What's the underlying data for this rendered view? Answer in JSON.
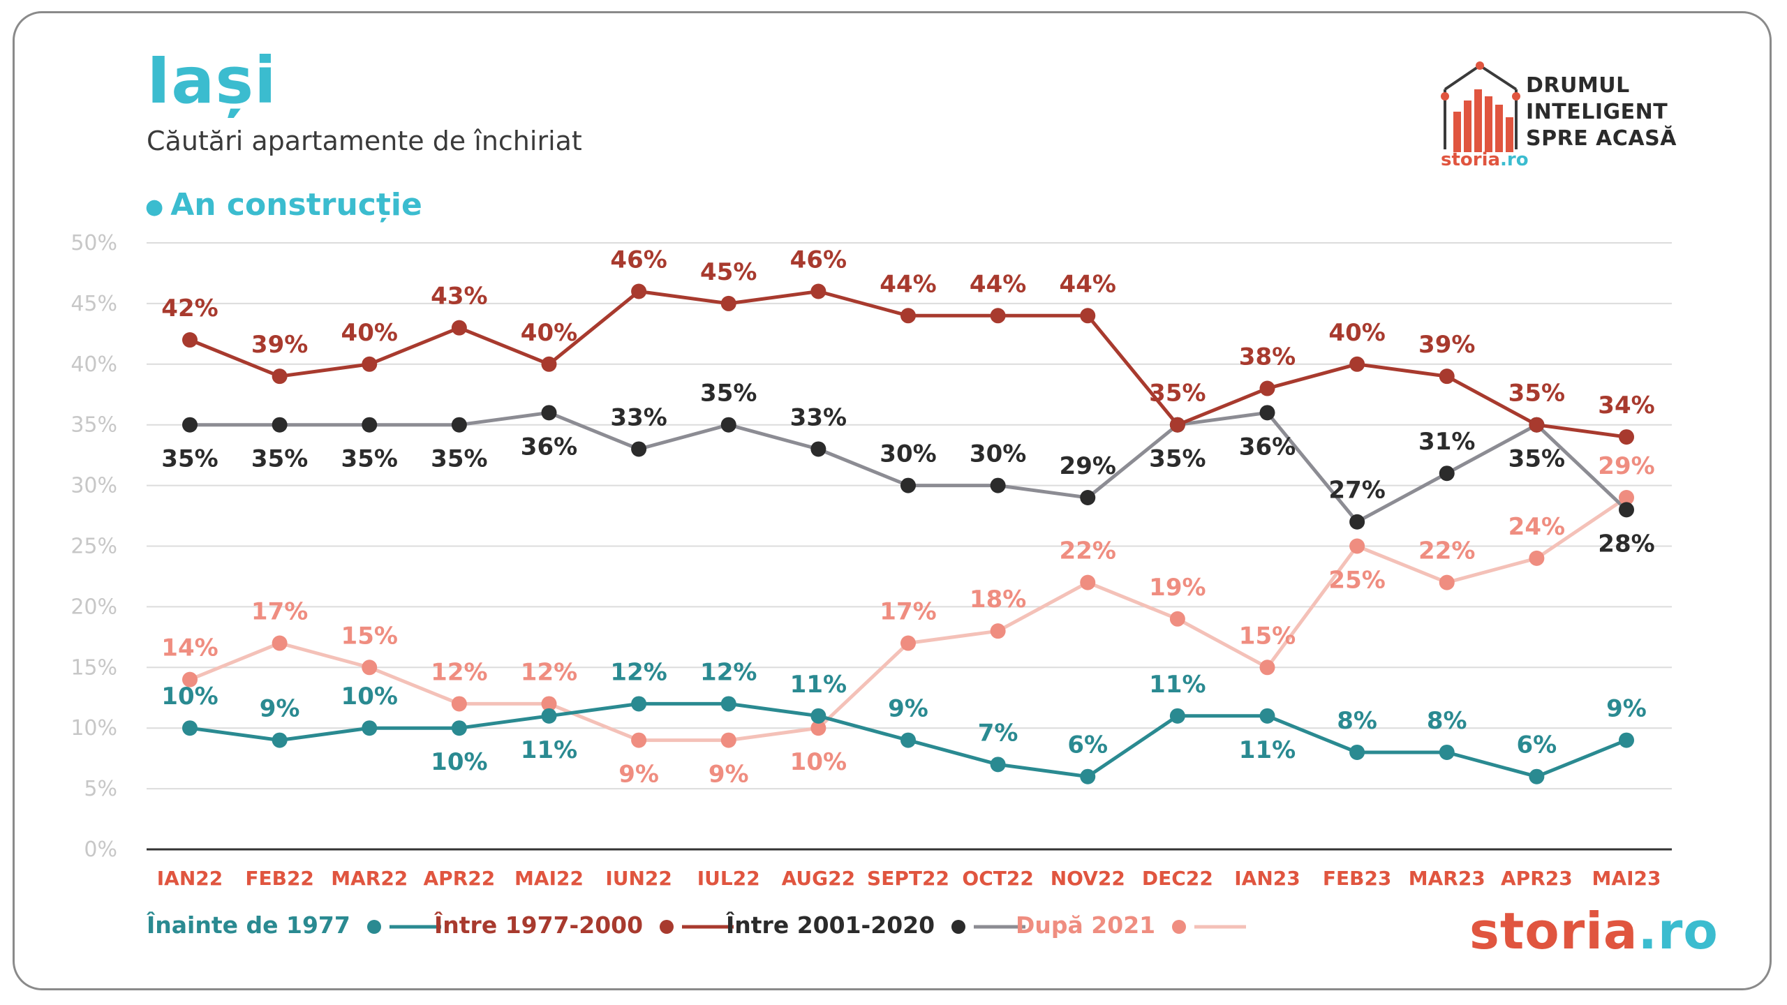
{
  "header": {
    "title": "Iași",
    "subtitle": "Căutări apartamente de închiriat",
    "section": "An construcție"
  },
  "brand": {
    "lines": [
      "DRUMUL",
      "INTELIGENT",
      "SPRE ACASĂ"
    ],
    "small_name": "storia",
    "small_tld": ".ro",
    "footer_name": "storia",
    "footer_tld": ".ro"
  },
  "colors": {
    "teal": "#2a8a91",
    "red": "#a83a2e",
    "dark": "#2b2b2b",
    "gray": "#8c8c93",
    "salmon": "#ef8d80",
    "salmon_line": "#f4c1b8",
    "accent": "#3bbccf",
    "axis_label": "#e0553f",
    "tick": "#c7c7c7"
  },
  "chart_data": {
    "type": "line",
    "categories": [
      "IAN22",
      "FEB22",
      "MAR22",
      "APR22",
      "MAI22",
      "IUN22",
      "IUL22",
      "AUG22",
      "SEPT22",
      "OCT22",
      "NOV22",
      "DEC22",
      "IAN23",
      "FEB23",
      "MAR23",
      "APR23",
      "MAI23"
    ],
    "ylim": [
      0,
      50
    ],
    "yticks": [
      "0%",
      "5%",
      "10%",
      "15%",
      "20%",
      "25%",
      "30%",
      "35%",
      "40%",
      "45%",
      "50%"
    ],
    "grid": true,
    "legend_position": "bottom",
    "series": [
      {
        "name": "Înainte de 1977",
        "values": [
          10,
          9,
          10,
          10,
          11,
          12,
          12,
          11,
          9,
          7,
          6,
          11,
          11,
          8,
          8,
          6,
          9
        ],
        "labels": [
          "10%",
          "9%",
          "10%",
          "10%",
          "11%",
          "12%",
          "12%",
          "11%",
          "9%",
          "7%",
          "6%",
          "11%",
          "11%",
          "8%",
          "8%",
          "6%",
          "9%"
        ],
        "label_pos": [
          "above",
          "above",
          "above",
          "below",
          "below",
          "above",
          "above",
          "above",
          "above",
          "above",
          "above",
          "above",
          "below",
          "above",
          "above",
          "above",
          "above"
        ]
      },
      {
        "name": "Între 1977-2000",
        "values": [
          42,
          39,
          40,
          43,
          40,
          46,
          45,
          46,
          44,
          44,
          44,
          35,
          38,
          40,
          39,
          35,
          34
        ],
        "labels": [
          "42%",
          "39%",
          "40%",
          "43%",
          "40%",
          "46%",
          "45%",
          "46%",
          "44%",
          "44%",
          "44%",
          "35%",
          "38%",
          "40%",
          "39%",
          "35%",
          "34%"
        ],
        "label_pos": [
          "above",
          "above",
          "above",
          "above",
          "above",
          "above",
          "above",
          "above",
          "above",
          "above",
          "above",
          "above",
          "above",
          "above",
          "above",
          "above",
          "above"
        ]
      },
      {
        "name": "Între 2001-2020",
        "values": [
          35,
          35,
          35,
          35,
          36,
          33,
          35,
          33,
          30,
          30,
          29,
          35,
          36,
          27,
          31,
          35,
          28
        ],
        "labels": [
          "35%",
          "35%",
          "35%",
          "35%",
          "36%",
          "33%",
          "35%",
          "33%",
          "30%",
          "30%",
          "29%",
          "35%",
          "36%",
          "27%",
          "31%",
          "35%",
          "28%"
        ],
        "label_pos": [
          "below",
          "below",
          "below",
          "below",
          "below",
          "above",
          "above",
          "above",
          "above",
          "above",
          "above",
          "below",
          "below",
          "above",
          "above",
          "below",
          "below"
        ]
      },
      {
        "name": "După 2021",
        "values": [
          14,
          17,
          15,
          12,
          12,
          9,
          9,
          10,
          17,
          18,
          22,
          19,
          15,
          25,
          22,
          24,
          29
        ],
        "labels": [
          "14%",
          "17%",
          "15%",
          "12%",
          "12%",
          "9%",
          "9%",
          "10%",
          "17%",
          "18%",
          "22%",
          "19%",
          "15%",
          "25%",
          "22%",
          "24%",
          "29%"
        ],
        "label_pos": [
          "above",
          "above",
          "above",
          "above",
          "above",
          "below",
          "below",
          "below",
          "above",
          "above",
          "above",
          "above",
          "above",
          "below",
          "above",
          "above",
          "above"
        ]
      }
    ]
  }
}
